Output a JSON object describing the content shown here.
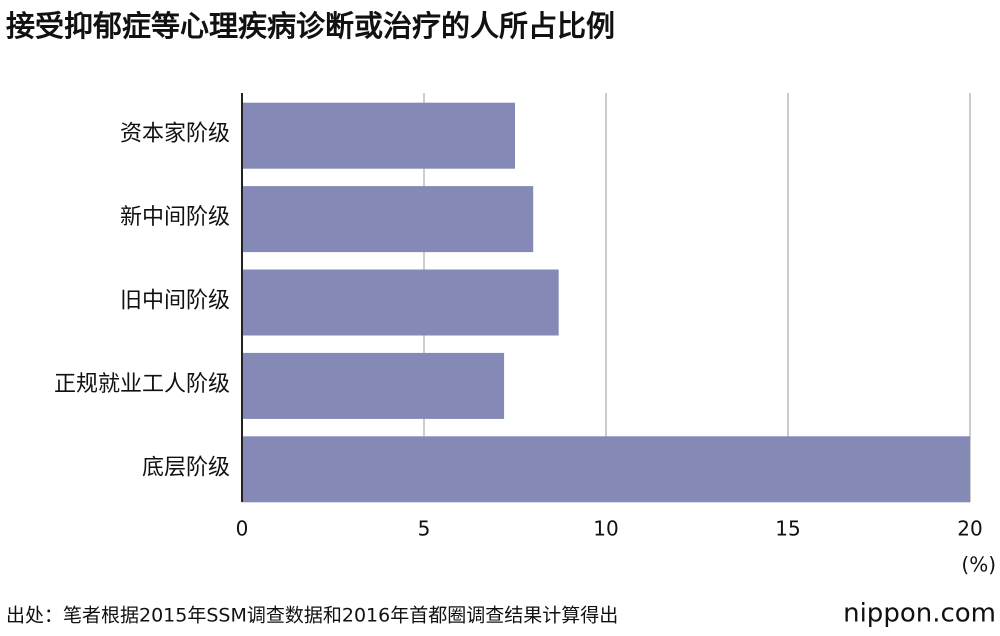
{
  "chart_data": {
    "type": "bar",
    "orientation": "horizontal",
    "title": "接受抑郁症等心理疾病诊断或治疗的人所占比例",
    "categories": [
      "资本家阶级",
      "新中间阶级",
      "旧中间阶级",
      "正规就业工人阶级",
      "底层阶级"
    ],
    "values": [
      7.5,
      8.0,
      8.7,
      7.2,
      20.0
    ],
    "color": "#8489b6",
    "xlim": [
      0,
      20
    ],
    "xticks": [
      0,
      5,
      10,
      15,
      20
    ],
    "grid": true,
    "unit_label": "(%)",
    "source": "出处：笔者根据2015年SSM调查数据和2016年首都圈调查结果计算得出",
    "watermark": "nippon.com"
  }
}
